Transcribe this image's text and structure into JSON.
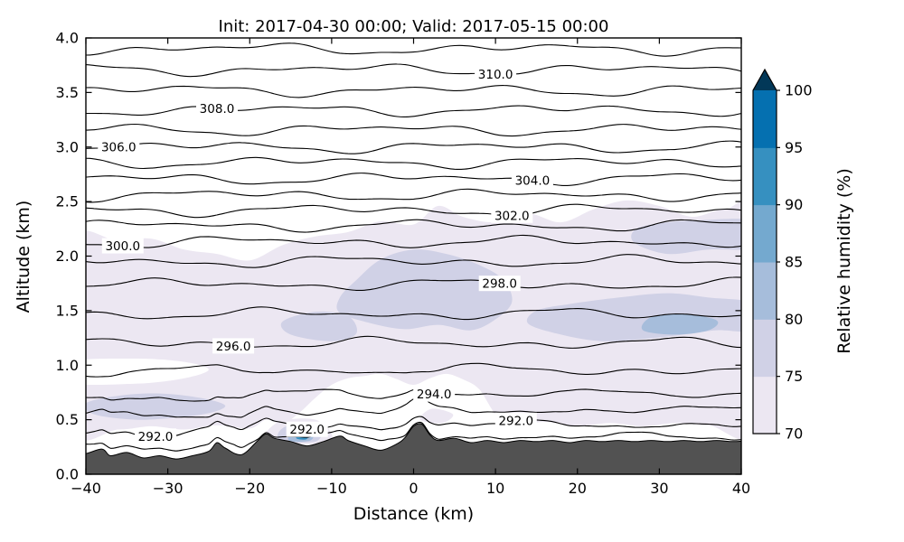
{
  "chart_data": {
    "type": "contour",
    "title": "Init: 2017-04-30 00:00; Valid: 2017-05-15 00:00",
    "xlabel": "Distance (km)",
    "ylabel": "Altitude (km)",
    "xlim": [
      -40,
      40
    ],
    "ylim": [
      0.0,
      4.0
    ],
    "xtick_values": [
      -40,
      -30,
      -20,
      -10,
      0,
      10,
      20,
      30,
      40
    ],
    "xtick_labels": [
      "−40",
      "−30",
      "−20",
      "−10",
      "0",
      "10",
      "20",
      "30",
      "40"
    ],
    "ytick_values": [
      0.0,
      0.5,
      1.0,
      1.5,
      2.0,
      2.5,
      3.0,
      3.5,
      4.0
    ],
    "ytick_labels": [
      "0.0",
      "0.5",
      "1.0",
      "1.5",
      "2.0",
      "2.5",
      "3.0",
      "3.5",
      "4.0"
    ],
    "grid": false,
    "contour_interval": 1.0,
    "contour_lines": [
      {
        "level": 291,
        "alt": 0.3
      },
      {
        "level": 292,
        "alt": 0.42
      },
      {
        "level": 293,
        "alt": 0.56
      },
      {
        "level": 294,
        "alt": 0.72
      },
      {
        "level": 295,
        "alt": 0.95
      },
      {
        "level": 296,
        "alt": 1.2
      },
      {
        "level": 297,
        "alt": 1.47
      },
      {
        "level": 298,
        "alt": 1.74
      },
      {
        "level": 299,
        "alt": 1.95
      },
      {
        "level": 300,
        "alt": 2.13
      },
      {
        "level": 301,
        "alt": 2.28
      },
      {
        "level": 302,
        "alt": 2.42
      },
      {
        "level": 303,
        "alt": 2.56
      },
      {
        "level": 304,
        "alt": 2.71
      },
      {
        "level": 305,
        "alt": 2.86
      },
      {
        "level": 306,
        "alt": 3.0
      },
      {
        "level": 307,
        "alt": 3.16
      },
      {
        "level": 308,
        "alt": 3.34
      },
      {
        "level": 309,
        "alt": 3.52
      },
      {
        "level": 310,
        "alt": 3.71
      },
      {
        "level": 311,
        "alt": 3.9
      }
    ],
    "contour_labels": [
      {
        "text": "310.0",
        "x": 10
      },
      {
        "text": "308.0",
        "x": -24
      },
      {
        "text": "306.0",
        "x": -36
      },
      {
        "text": "304.0",
        "x": 14.5
      },
      {
        "text": "302.0",
        "x": 12
      },
      {
        "text": "300.0",
        "x": -35.5
      },
      {
        "text": "298.0",
        "x": 10.5
      },
      {
        "text": "296.0",
        "x": -22
      },
      {
        "text": "294.0",
        "x": 2.5
      },
      {
        "text": "292.0",
        "x": -31.5
      },
      {
        "text": "292.0",
        "x": -13
      },
      {
        "text": "292.0",
        "x": 12.5
      }
    ],
    "colorbar": {
      "label": "Relative humidity (%)",
      "tick_values": [
        70,
        75,
        80,
        85,
        90,
        95,
        100
      ],
      "tick_labels": [
        "70",
        "75",
        "80",
        "85",
        "90",
        "95",
        "100"
      ],
      "bin_edges": [
        70,
        75,
        80,
        85,
        90,
        95,
        100
      ],
      "colors": [
        "#ece7f2",
        "#d0d1e6",
        "#a6bddb",
        "#74a9cf",
        "#3690c0",
        "#0570b0"
      ],
      "extend_color": "#023858",
      "extend": "max"
    },
    "terrain": {
      "color": "#525252",
      "profile": [
        [
          -41,
          0.2
        ],
        [
          -40,
          0.19
        ],
        [
          -38,
          0.23
        ],
        [
          -37,
          0.17
        ],
        [
          -35,
          0.2
        ],
        [
          -33,
          0.15
        ],
        [
          -31,
          0.17
        ],
        [
          -29,
          0.14
        ],
        [
          -27,
          0.17
        ],
        [
          -25,
          0.21
        ],
        [
          -24,
          0.29
        ],
        [
          -23,
          0.24
        ],
        [
          -21,
          0.18
        ],
        [
          -19,
          0.31
        ],
        [
          -18,
          0.37
        ],
        [
          -17,
          0.33
        ],
        [
          -15,
          0.3
        ],
        [
          -13,
          0.26
        ],
        [
          -11,
          0.3
        ],
        [
          -9,
          0.35
        ],
        [
          -8,
          0.31
        ],
        [
          -6,
          0.26
        ],
        [
          -4,
          0.22
        ],
        [
          -2,
          0.28
        ],
        [
          -1,
          0.34
        ],
        [
          0,
          0.44
        ],
        [
          1,
          0.46
        ],
        [
          2,
          0.36
        ],
        [
          3,
          0.31
        ],
        [
          5,
          0.33
        ],
        [
          7,
          0.29
        ],
        [
          9,
          0.31
        ],
        [
          11,
          0.29
        ],
        [
          13,
          0.31
        ],
        [
          15,
          0.3
        ],
        [
          17,
          0.31
        ],
        [
          19,
          0.29
        ],
        [
          21,
          0.31
        ],
        [
          23,
          0.3
        ],
        [
          25,
          0.31
        ],
        [
          27,
          0.3
        ],
        [
          29,
          0.31
        ],
        [
          31,
          0.3
        ],
        [
          33,
          0.31
        ],
        [
          35,
          0.3
        ],
        [
          37,
          0.31
        ],
        [
          39,
          0.3
        ],
        [
          41,
          0.31
        ]
      ]
    },
    "humidity_regions": [
      {
        "rh": "70-75",
        "color": "#ece7f2",
        "points": [
          [
            -42,
            0.44
          ],
          [
            -36,
            0.41
          ],
          [
            -32,
            0.44
          ],
          [
            -28,
            0.41
          ],
          [
            -24,
            0.45
          ],
          [
            -20,
            0.42
          ],
          [
            -18,
            0.5
          ],
          [
            -16,
            0.46
          ],
          [
            -14,
            0.56
          ],
          [
            -12,
            0.7
          ],
          [
            -10,
            0.82
          ],
          [
            -8,
            0.88
          ],
          [
            -6,
            0.9
          ],
          [
            -4,
            0.92
          ],
          [
            -2,
            0.87
          ],
          [
            0,
            0.82
          ],
          [
            2,
            0.88
          ],
          [
            4,
            0.92
          ],
          [
            6,
            0.87
          ],
          [
            8,
            0.78
          ],
          [
            10,
            0.55
          ],
          [
            12,
            0.45
          ],
          [
            16,
            0.48
          ],
          [
            20,
            0.44
          ],
          [
            24,
            0.47
          ],
          [
            28,
            0.44
          ],
          [
            32,
            0.47
          ],
          [
            36,
            0.45
          ],
          [
            42,
            0.46
          ],
          [
            42,
            2.36
          ],
          [
            38,
            2.43
          ],
          [
            34,
            2.36
          ],
          [
            30,
            2.46
          ],
          [
            26,
            2.51
          ],
          [
            22,
            2.43
          ],
          [
            18,
            2.31
          ],
          [
            14,
            2.39
          ],
          [
            10,
            2.31
          ],
          [
            6,
            2.36
          ],
          [
            3,
            2.46
          ],
          [
            0,
            2.29
          ],
          [
            -4,
            2.32
          ],
          [
            -8,
            2.22
          ],
          [
            -12,
            2.18
          ],
          [
            -16,
            2.1
          ],
          [
            -20,
            1.96
          ],
          [
            -24,
            2.02
          ],
          [
            -28,
            2.06
          ],
          [
            -32,
            2.16
          ],
          [
            -36,
            2.14
          ],
          [
            -42,
            2.1
          ]
        ]
      },
      {
        "rh": "70-75",
        "color": "#ece7f2",
        "points": [
          [
            -17.5,
            0.3
          ],
          [
            -11,
            0.28
          ],
          [
            -10,
            0.37
          ],
          [
            -12,
            0.5
          ],
          [
            -16,
            0.49
          ],
          [
            -18,
            0.38
          ]
        ]
      },
      {
        "rh": "70-75",
        "color": "#ece7f2",
        "points": [
          [
            0.8,
            0.5
          ],
          [
            3.5,
            0.47
          ],
          [
            4.8,
            0.55
          ],
          [
            2.2,
            0.6
          ]
        ]
      },
      {
        "rh": "<70",
        "color": "#ffffff",
        "points": [
          [
            -42,
            0.84
          ],
          [
            -34,
            0.83
          ],
          [
            -28,
            0.88
          ],
          [
            -25,
            0.96
          ],
          [
            -28,
            1.03
          ],
          [
            -34,
            1.06
          ],
          [
            -42,
            1.03
          ]
        ]
      },
      {
        "rh": "75-80",
        "color": "#d0d1e6",
        "points": [
          [
            -39,
            0.55
          ],
          [
            -34,
            0.5
          ],
          [
            -29,
            0.52
          ],
          [
            -25,
            0.56
          ],
          [
            -23,
            0.63
          ],
          [
            -26,
            0.7
          ],
          [
            -31,
            0.74
          ],
          [
            -36,
            0.72
          ],
          [
            -40,
            0.65
          ]
        ]
      },
      {
        "rh": "75-80",
        "color": "#d0d1e6",
        "points": [
          [
            -9,
            1.48
          ],
          [
            -5,
            1.38
          ],
          [
            -1,
            1.33
          ],
          [
            3,
            1.37
          ],
          [
            7,
            1.32
          ],
          [
            10,
            1.42
          ],
          [
            12,
            1.58
          ],
          [
            11,
            1.78
          ],
          [
            8,
            1.92
          ],
          [
            4,
            2.02
          ],
          [
            0,
            2.06
          ],
          [
            -4,
            1.97
          ],
          [
            -7,
            1.78
          ],
          [
            -9,
            1.62
          ]
        ]
      },
      {
        "rh": "75-80",
        "color": "#d0d1e6",
        "points": [
          [
            -15,
            1.28
          ],
          [
            -10,
            1.22
          ],
          [
            -7,
            1.29
          ],
          [
            -8,
            1.45
          ],
          [
            -12,
            1.49
          ],
          [
            -16,
            1.4
          ]
        ]
      },
      {
        "rh": "75-80",
        "color": "#d0d1e6",
        "points": [
          [
            14,
            1.38
          ],
          [
            18,
            1.28
          ],
          [
            23,
            1.22
          ],
          [
            28,
            1.24
          ],
          [
            33,
            1.28
          ],
          [
            37,
            1.32
          ],
          [
            42,
            1.32
          ],
          [
            42,
            1.56
          ],
          [
            36,
            1.62
          ],
          [
            31,
            1.66
          ],
          [
            25,
            1.62
          ],
          [
            19,
            1.56
          ],
          [
            15,
            1.5
          ]
        ]
      },
      {
        "rh": "75-80",
        "color": "#d0d1e6",
        "points": [
          [
            27,
            2.12
          ],
          [
            31,
            2.02
          ],
          [
            36,
            2.06
          ],
          [
            42,
            2.08
          ],
          [
            42,
            2.32
          ],
          [
            35,
            2.33
          ],
          [
            30,
            2.3
          ],
          [
            27,
            2.24
          ]
        ]
      },
      {
        "rh": "75-80",
        "color": "#d0d1e6",
        "points": [
          [
            -16.2,
            0.31
          ],
          [
            -12,
            0.3
          ],
          [
            -11.4,
            0.41
          ],
          [
            -14,
            0.47
          ],
          [
            -16.2,
            0.41
          ]
        ]
      },
      {
        "rh": "80-85",
        "color": "#a6bddb",
        "points": [
          [
            28,
            1.32
          ],
          [
            32,
            1.28
          ],
          [
            36,
            1.32
          ],
          [
            37,
            1.41
          ],
          [
            33,
            1.47
          ],
          [
            29,
            1.44
          ]
        ]
      },
      {
        "rh": "80-85",
        "color": "#a6bddb",
        "points": [
          [
            -15.2,
            0.31
          ],
          [
            -12.6,
            0.31
          ],
          [
            -12.4,
            0.39
          ],
          [
            -14.6,
            0.41
          ]
        ]
      },
      {
        "rh": "90-95",
        "color": "#3690c0",
        "points": [
          [
            -14.3,
            0.33
          ],
          [
            -13.1,
            0.32
          ],
          [
            -12.9,
            0.37
          ],
          [
            -14.0,
            0.385
          ]
        ]
      }
    ]
  }
}
